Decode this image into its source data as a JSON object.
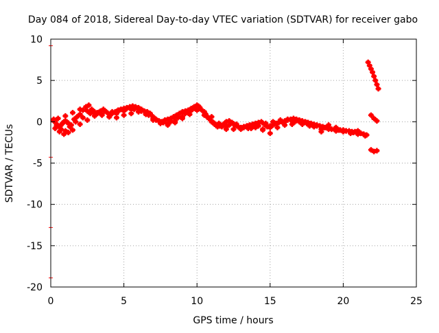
{
  "chart_data": {
    "type": "scatter",
    "title": "Day 084 of 2018, Sidereal Day-to-day VTEC variation (SDTVAR) for receiver gabo",
    "xlabel": "GPS time / hours",
    "ylabel": "SDTVAR / TECUs",
    "xlim": [
      0,
      25
    ],
    "ylim": [
      -20,
      10
    ],
    "xticks": [
      0,
      5,
      10,
      15,
      20,
      25
    ],
    "yticks": [
      -20,
      -15,
      -10,
      -5,
      0,
      5,
      10
    ],
    "xtick_labels": [
      "0",
      "5",
      "10",
      "15",
      "20",
      "25"
    ],
    "ytick_labels": [
      "-20",
      "-15",
      "-10",
      "-5",
      "0",
      "5",
      "10"
    ],
    "grid": true,
    "series": [
      {
        "name": "SDTVAR",
        "color": "#ff0000",
        "marker": "plus",
        "x": [
          0.2,
          0.3,
          0.4,
          0.5,
          0.6,
          0.7,
          0.8,
          0.9,
          1.0,
          1.1,
          1.2,
          1.4,
          1.6,
          1.8,
          2.0,
          2.2,
          2.4,
          2.6,
          2.8,
          3.0,
          3.2,
          3.4,
          3.6,
          3.8,
          4.0,
          4.2,
          4.4,
          4.6,
          4.8,
          5.0,
          5.2,
          5.4,
          5.6,
          5.8,
          6.0,
          6.2,
          6.4,
          6.6,
          6.8,
          7.0,
          7.2,
          7.4,
          7.6,
          7.8,
          8.0,
          8.2,
          8.4,
          8.6,
          8.8,
          9.0,
          9.2,
          9.4,
          9.6,
          9.8,
          10.0,
          10.1,
          10.2,
          10.4,
          10.6,
          10.8,
          11.0,
          11.2,
          11.4,
          11.6,
          11.8,
          12.0,
          12.2,
          12.4,
          12.6,
          12.8,
          13.0,
          13.2,
          13.4,
          13.6,
          13.8,
          14.0,
          14.2,
          14.4,
          14.6,
          14.8,
          15.0,
          15.2,
          15.4,
          15.6,
          15.8,
          16.0,
          16.2,
          16.4,
          16.6,
          16.8,
          17.0,
          17.2,
          17.4,
          17.6,
          17.8,
          18.0,
          18.2,
          18.4,
          18.6,
          18.8,
          19.0,
          19.2,
          19.4,
          19.6,
          19.8,
          20.0,
          20.2,
          20.4,
          20.6,
          20.8,
          21.0,
          21.2,
          21.4,
          21.6,
          21.7,
          21.8,
          21.9,
          22.0,
          22.1,
          22.2,
          22.3,
          22.4,
          21.9,
          22.1,
          22.3,
          21.9,
          22.1,
          22.3,
          0.3,
          0.6,
          0.9,
          1.2,
          1.5,
          2.0,
          2.5,
          3.0,
          3.5,
          4.0,
          4.5,
          5.0,
          5.5,
          6.0,
          6.5,
          7.0,
          7.5,
          8.0,
          8.5,
          9.0,
          9.5,
          10.0,
          10.5,
          11.0,
          11.5,
          12.0,
          12.5,
          13.0,
          13.5,
          14.0,
          14.5,
          15.0,
          15.5,
          16.0,
          16.5,
          17.0,
          17.5,
          18.0,
          18.5,
          19.0,
          19.5,
          20.0,
          20.5,
          21.0,
          0.5,
          1.0,
          1.5,
          2.0,
          2.5,
          3.0,
          3.5,
          4.0,
          4.5,
          5.0,
          5.5,
          6.0,
          6.5,
          7.0,
          7.5,
          8.0,
          8.5,
          9.0,
          9.5,
          10.0,
          10.5,
          11.0,
          11.5,
          12.0,
          12.5,
          13.0,
          13.5,
          14.0,
          14.5,
          15.0,
          15.5,
          16.0,
          16.5,
          17.0,
          17.5,
          18.0,
          18.5,
          19.0,
          19.5,
          20.0,
          20.5,
          21.0,
          21.5,
          0.2,
          0.4,
          0.7,
          1.0,
          1.3,
          1.7,
          2.2,
          2.7,
          3.2,
          3.7,
          4.2,
          4.7,
          5.2,
          5.7,
          6.2,
          6.7,
          7.2,
          7.7,
          8.2,
          8.7,
          9.2,
          9.7,
          10.2,
          10.7,
          11.2,
          11.7,
          12.2,
          12.7,
          13.2,
          13.7,
          14.2,
          14.7,
          15.2,
          15.7,
          16.2,
          16.7,
          17.2,
          17.7,
          18.2,
          18.7,
          19.2,
          19.7,
          20.2,
          20.7,
          21.2
        ],
        "y": [
          0.3,
          0.0,
          -0.3,
          -0.5,
          -0.6,
          -0.4,
          -0.2,
          0.0,
          0.1,
          0.0,
          -0.2,
          -0.4,
          0.3,
          0.6,
          0.9,
          1.4,
          1.8,
          2.0,
          1.5,
          1.2,
          1.0,
          1.3,
          1.5,
          1.2,
          0.9,
          1.0,
          1.2,
          1.4,
          1.5,
          1.6,
          1.7,
          1.8,
          1.9,
          1.8,
          1.7,
          1.5,
          1.3,
          1.2,
          1.0,
          0.6,
          0.3,
          0.1,
          0.0,
          0.2,
          0.3,
          0.4,
          0.6,
          0.8,
          1.0,
          1.2,
          1.3,
          1.4,
          1.6,
          1.8,
          2.0,
          1.9,
          1.7,
          1.3,
          0.9,
          0.4,
          0.0,
          -0.3,
          -0.6,
          -0.5,
          -0.3,
          0.0,
          0.1,
          -0.1,
          -0.4,
          -0.6,
          -0.7,
          -0.6,
          -0.5,
          -0.4,
          -0.3,
          -0.2,
          -0.1,
          0.0,
          -0.3,
          -0.6,
          -0.7,
          -0.4,
          -0.2,
          -0.1,
          0.0,
          0.1,
          0.2,
          0.3,
          0.4,
          0.3,
          0.2,
          0.1,
          0.0,
          -0.1,
          -0.2,
          -0.3,
          -0.4,
          -0.5,
          -0.6,
          -0.7,
          -0.8,
          -0.9,
          -0.9,
          -1.0,
          -1.0,
          -1.1,
          -1.1,
          -1.1,
          -1.2,
          -1.2,
          -1.3,
          -1.4,
          -1.5,
          -1.6,
          7.2,
          6.8,
          6.4,
          6.0,
          5.5,
          5.0,
          4.5,
          4.0,
          0.8,
          0.4,
          0.1,
          -3.4,
          -3.6,
          -3.5,
          -0.8,
          -1.2,
          -1.5,
          -1.3,
          -1.0,
          -0.3,
          0.2,
          0.7,
          0.9,
          0.6,
          0.5,
          0.8,
          1.0,
          1.2,
          0.9,
          0.4,
          0.0,
          -0.2,
          0.1,
          0.6,
          1.2,
          1.6,
          1.2,
          0.6,
          -0.2,
          -0.9,
          -0.3,
          -0.9,
          -0.8,
          -0.7,
          -0.9,
          -1.4,
          -0.7,
          -0.4,
          -0.3,
          0.0,
          -0.1,
          -0.6,
          -1.2,
          -0.4,
          -0.7,
          -1.0,
          -1.3,
          -1.1,
          0.4,
          0.7,
          1.1,
          1.5,
          1.3,
          1.0,
          0.8,
          0.6,
          1.0,
          1.3,
          1.5,
          1.6,
          1.0,
          0.2,
          -0.2,
          -0.4,
          -0.1,
          0.4,
          0.9,
          1.4,
          0.8,
          0.1,
          -0.5,
          -0.6,
          -0.9,
          -0.8,
          -0.5,
          -0.6,
          -1.0,
          -0.5,
          -0.2,
          0.0,
          0.1,
          0.1,
          -0.2,
          -0.4,
          -0.9,
          -0.9,
          -1.1,
          -1.2,
          -1.4,
          -1.5,
          -1.7,
          0.1,
          -0.5,
          -0.9,
          -1.1,
          -0.6,
          0.0,
          0.5,
          1.0,
          1.1,
          1.3,
          1.2,
          1.4,
          1.6,
          1.5,
          1.3,
          0.8,
          0.2,
          -0.1,
          0.0,
          0.5,
          1.0,
          1.5,
          1.6,
          0.6,
          -0.2,
          -0.6,
          -0.4,
          -0.3,
          -0.7,
          -0.8,
          -0.5,
          -0.2,
          0.0,
          0.2,
          0.3,
          0.0,
          -0.3,
          -0.5,
          -0.5,
          -0.7,
          -0.9,
          -1.0,
          -1.1,
          -1.3,
          -1.4
        ]
      }
    ],
    "border_markers": {
      "y": [
        9.2,
        -4.3,
        -12.8,
        -18.9
      ],
      "color": "#ff0000"
    }
  }
}
